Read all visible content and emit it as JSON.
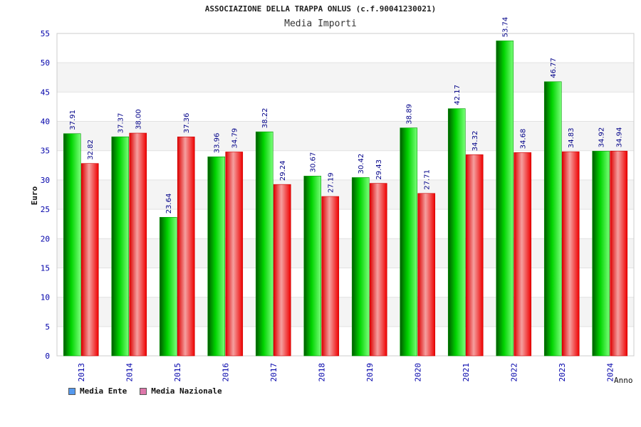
{
  "chart_data": {
    "type": "bar",
    "title": "ASSOCIAZIONE DELLA TRAPPA ONLUS (c.f.90041230021)",
    "subtitle": "Media Importi",
    "xlabel": "Anno",
    "ylabel": "Euro",
    "ylim": [
      0,
      55
    ],
    "yticks": [
      0,
      5,
      10,
      15,
      20,
      25,
      30,
      35,
      40,
      45,
      50,
      55
    ],
    "grid": true,
    "legend_position": "bottom-left",
    "categories": [
      "2013",
      "2014",
      "2015",
      "2016",
      "2017",
      "2018",
      "2019",
      "2020",
      "2021",
      "2022",
      "2023",
      "2024"
    ],
    "series": [
      {
        "name": "Media Ente",
        "values": [
          37.91,
          37.37,
          23.64,
          33.96,
          38.22,
          30.67,
          30.42,
          38.89,
          42.17,
          53.74,
          46.77,
          34.92
        ],
        "labels": [
          "37.91",
          "37.37",
          "23.64",
          "33.96",
          "38.22",
          "30.67",
          "30.42",
          "38.89",
          "42.17",
          "53.74",
          "46.77",
          "34.92"
        ],
        "color": "#00c000",
        "legend_color": "#5599ee"
      },
      {
        "name": "Media Nazionale",
        "values": [
          32.82,
          38.0,
          37.36,
          34.79,
          29.24,
          27.19,
          29.43,
          27.71,
          34.32,
          34.68,
          34.83,
          34.94
        ],
        "labels": [
          "32.82",
          "38.00",
          "37.36",
          "34.79",
          "29.24",
          "27.19",
          "29.43",
          "27.71",
          "34.32",
          "34.68",
          "34.83",
          "34.94"
        ],
        "color": "#ee0000",
        "legend_color": "#dd77aa"
      }
    ]
  },
  "colors": {
    "axis_text": "#0000aa",
    "value_label": "#000088",
    "band": "#f4f4f4",
    "gridline": "#e2e2e2"
  }
}
